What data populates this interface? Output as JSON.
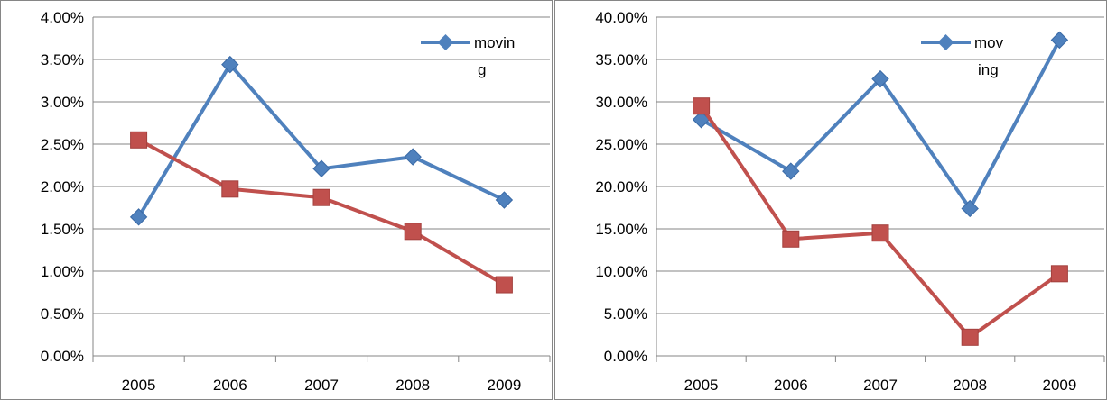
{
  "chart_data": [
    {
      "type": "line",
      "title": "",
      "xlabel": "",
      "ylabel": "",
      "categories": [
        "2005",
        "2006",
        "2007",
        "2008",
        "2009"
      ],
      "ylim": [
        0,
        0.04
      ],
      "y_ticks": [
        "0.00%",
        "0.50%",
        "1.00%",
        "1.50%",
        "2.00%",
        "2.50%",
        "3.00%",
        "3.50%",
        "4.00%"
      ],
      "grid": true,
      "legend_position": "top-right",
      "legend": {
        "line1": "movin",
        "line2": "g"
      },
      "series": [
        {
          "name": "moving",
          "color": "#4F81BD",
          "marker": "diamond",
          "values": [
            0.0164,
            0.0344,
            0.0221,
            0.0235,
            0.0184
          ]
        },
        {
          "color": "#C0504D",
          "marker": "square",
          "values": [
            0.0255,
            0.0197,
            0.0187,
            0.0147,
            0.0084
          ]
        }
      ]
    },
    {
      "type": "line",
      "title": "",
      "xlabel": "",
      "ylabel": "",
      "categories": [
        "2005",
        "2006",
        "2007",
        "2008",
        "2009"
      ],
      "ylim": [
        0,
        0.4
      ],
      "y_ticks": [
        "0.00%",
        "5.00%",
        "10.00%",
        "15.00%",
        "20.00%",
        "25.00%",
        "30.00%",
        "35.00%",
        "40.00%"
      ],
      "grid": true,
      "legend_position": "top-right",
      "legend": {
        "line1": "mov",
        "line2": "ing"
      },
      "series": [
        {
          "name": "moving",
          "color": "#4F81BD",
          "marker": "diamond",
          "values": [
            0.279,
            0.218,
            0.327,
            0.174,
            0.373
          ]
        },
        {
          "color": "#C0504D",
          "marker": "square",
          "values": [
            0.295,
            0.138,
            0.145,
            0.022,
            0.097
          ]
        }
      ]
    }
  ]
}
